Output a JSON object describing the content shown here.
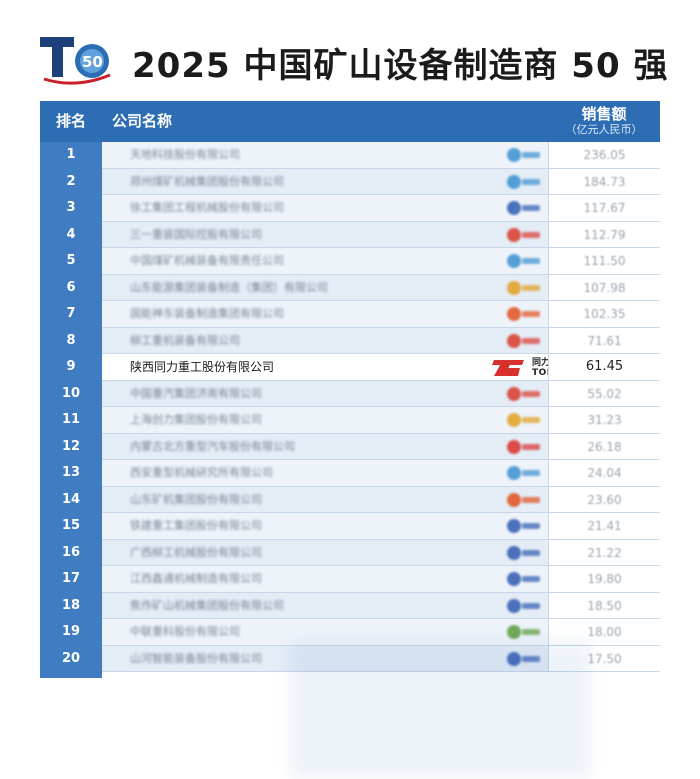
{
  "title": "2025 中国矿山设备制造商 50 强",
  "logo": {
    "letter": "T",
    "number": "50"
  },
  "columns": {
    "rank": "排名",
    "company": "公司名称",
    "sales": "销售额",
    "sales_unit": "（亿元人民币）"
  },
  "rows": [
    {
      "rank": "1",
      "company": "天地科技股份有限公司",
      "sales": "236.05",
      "logo_color": "#3a8fd0"
    },
    {
      "rank": "2",
      "company": "郑州煤矿机械集团股份有限公司",
      "sales": "184.73",
      "logo_color": "#3a8fd0"
    },
    {
      "rank": "3",
      "company": "徐工集团工程机械股份有限公司",
      "sales": "117.67",
      "logo_color": "#2f5bb0"
    },
    {
      "rank": "4",
      "company": "三一重装国际控股有限公司",
      "sales": "112.79",
      "logo_color": "#d83a2c"
    },
    {
      "rank": "5",
      "company": "中国煤矿机械装备有限责任公司",
      "sales": "111.50",
      "logo_color": "#3a8fd0"
    },
    {
      "rank": "6",
      "company": "山东能源集团装备制造（集团）有限公司",
      "sales": "107.98",
      "logo_color": "#e0a020"
    },
    {
      "rank": "7",
      "company": "国能神东装备制造集团有限公司",
      "sales": "102.35",
      "logo_color": "#e05020"
    },
    {
      "rank": "8",
      "company": "柳工重机装备有限公司",
      "sales": "71.61",
      "logo_color": "#d83a2c"
    },
    {
      "rank": "9",
      "company": "陕西同力重工股份有限公司",
      "sales": "61.45",
      "logo_color": "#d8302c",
      "logo_text_cn": "同力重工",
      "logo_text_en": "TONLY"
    },
    {
      "rank": "10",
      "company": "中国重汽集团济南有限公司",
      "sales": "55.02",
      "logo_color": "#d83a2c"
    },
    {
      "rank": "11",
      "company": "上海创力集团股份有限公司",
      "sales": "31.23",
      "logo_color": "#e0a020"
    },
    {
      "rank": "12",
      "company": "内蒙古北方重型汽车股份有限公司",
      "sales": "26.18",
      "logo_color": "#d8302c"
    },
    {
      "rank": "13",
      "company": "西安重型机械研究所有限公司",
      "sales": "24.04",
      "logo_color": "#3a8fd0"
    },
    {
      "rank": "14",
      "company": "山东矿机集团股份有限公司",
      "sales": "23.60",
      "logo_color": "#e05020"
    },
    {
      "rank": "15",
      "company": "铁建重工集团股份有限公司",
      "sales": "21.41",
      "logo_color": "#2f5bb0"
    },
    {
      "rank": "16",
      "company": "广西柳工机械股份有限公司",
      "sales": "21.22",
      "logo_color": "#2f5bb0"
    },
    {
      "rank": "17",
      "company": "江西鑫通机械制造有限公司",
      "sales": "19.80",
      "logo_color": "#2f5bb0"
    },
    {
      "rank": "18",
      "company": "焦作矿山机械集团股份有限公司",
      "sales": "18.50",
      "logo_color": "#2f5bb0"
    },
    {
      "rank": "19",
      "company": "中联重科股份有限公司",
      "sales": "18.00",
      "logo_color": "#5a9a3a"
    },
    {
      "rank": "20",
      "company": "山河智能装备股份有限公司",
      "sales": "17.50",
      "logo_color": "#2f5bb0"
    }
  ]
}
